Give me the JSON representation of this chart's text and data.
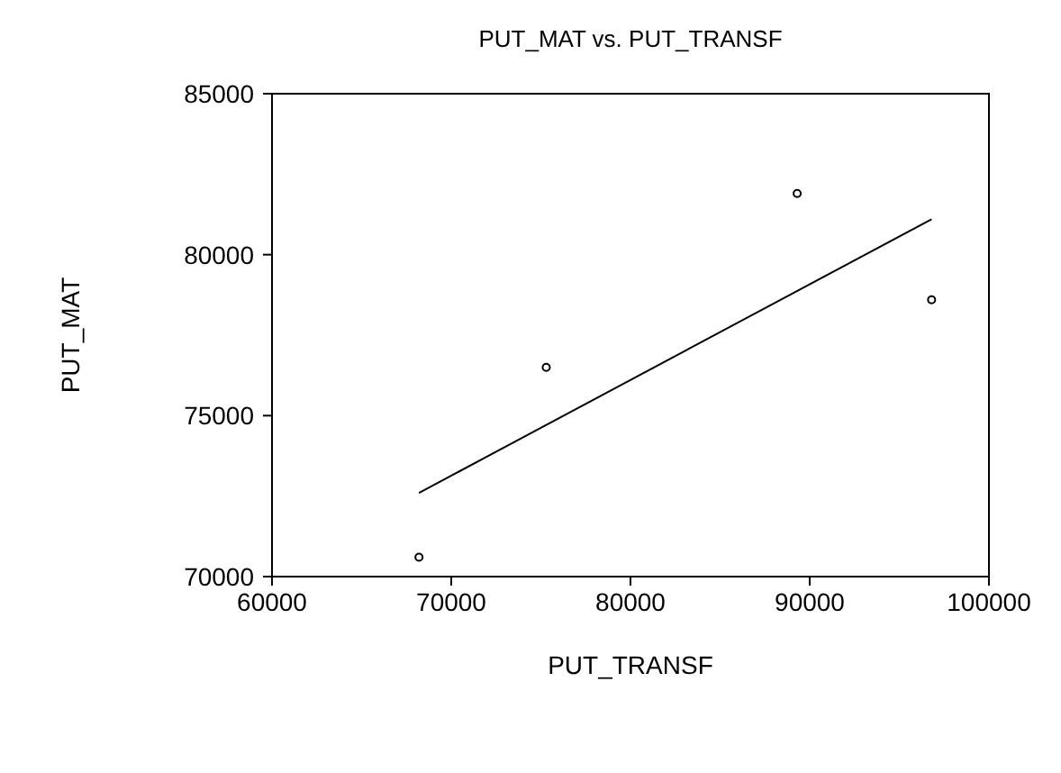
{
  "chart_data": {
    "type": "scatter",
    "title": "PUT_MAT vs. PUT_TRANSF",
    "xlabel": "PUT_TRANSF",
    "ylabel": "PUT_MAT",
    "xlim": [
      60000,
      100000
    ],
    "xticks": [
      60000,
      70000,
      80000,
      90000,
      100000
    ],
    "ylim": [
      70000,
      85000
    ],
    "yticks": [
      70000,
      75000,
      80000,
      85000
    ],
    "grid": false,
    "marker": "circle",
    "series": [
      {
        "type": "scatter",
        "color": "#000000",
        "x": [
          68200,
          75300,
          89300,
          96800
        ],
        "values": [
          70600,
          76500,
          81900,
          78600
        ]
      },
      {
        "type": "line",
        "color": "#000000",
        "marker": "none",
        "line_style": "solid",
        "x": [
          68200,
          96800
        ],
        "values": [
          72600,
          81100
        ]
      }
    ]
  }
}
